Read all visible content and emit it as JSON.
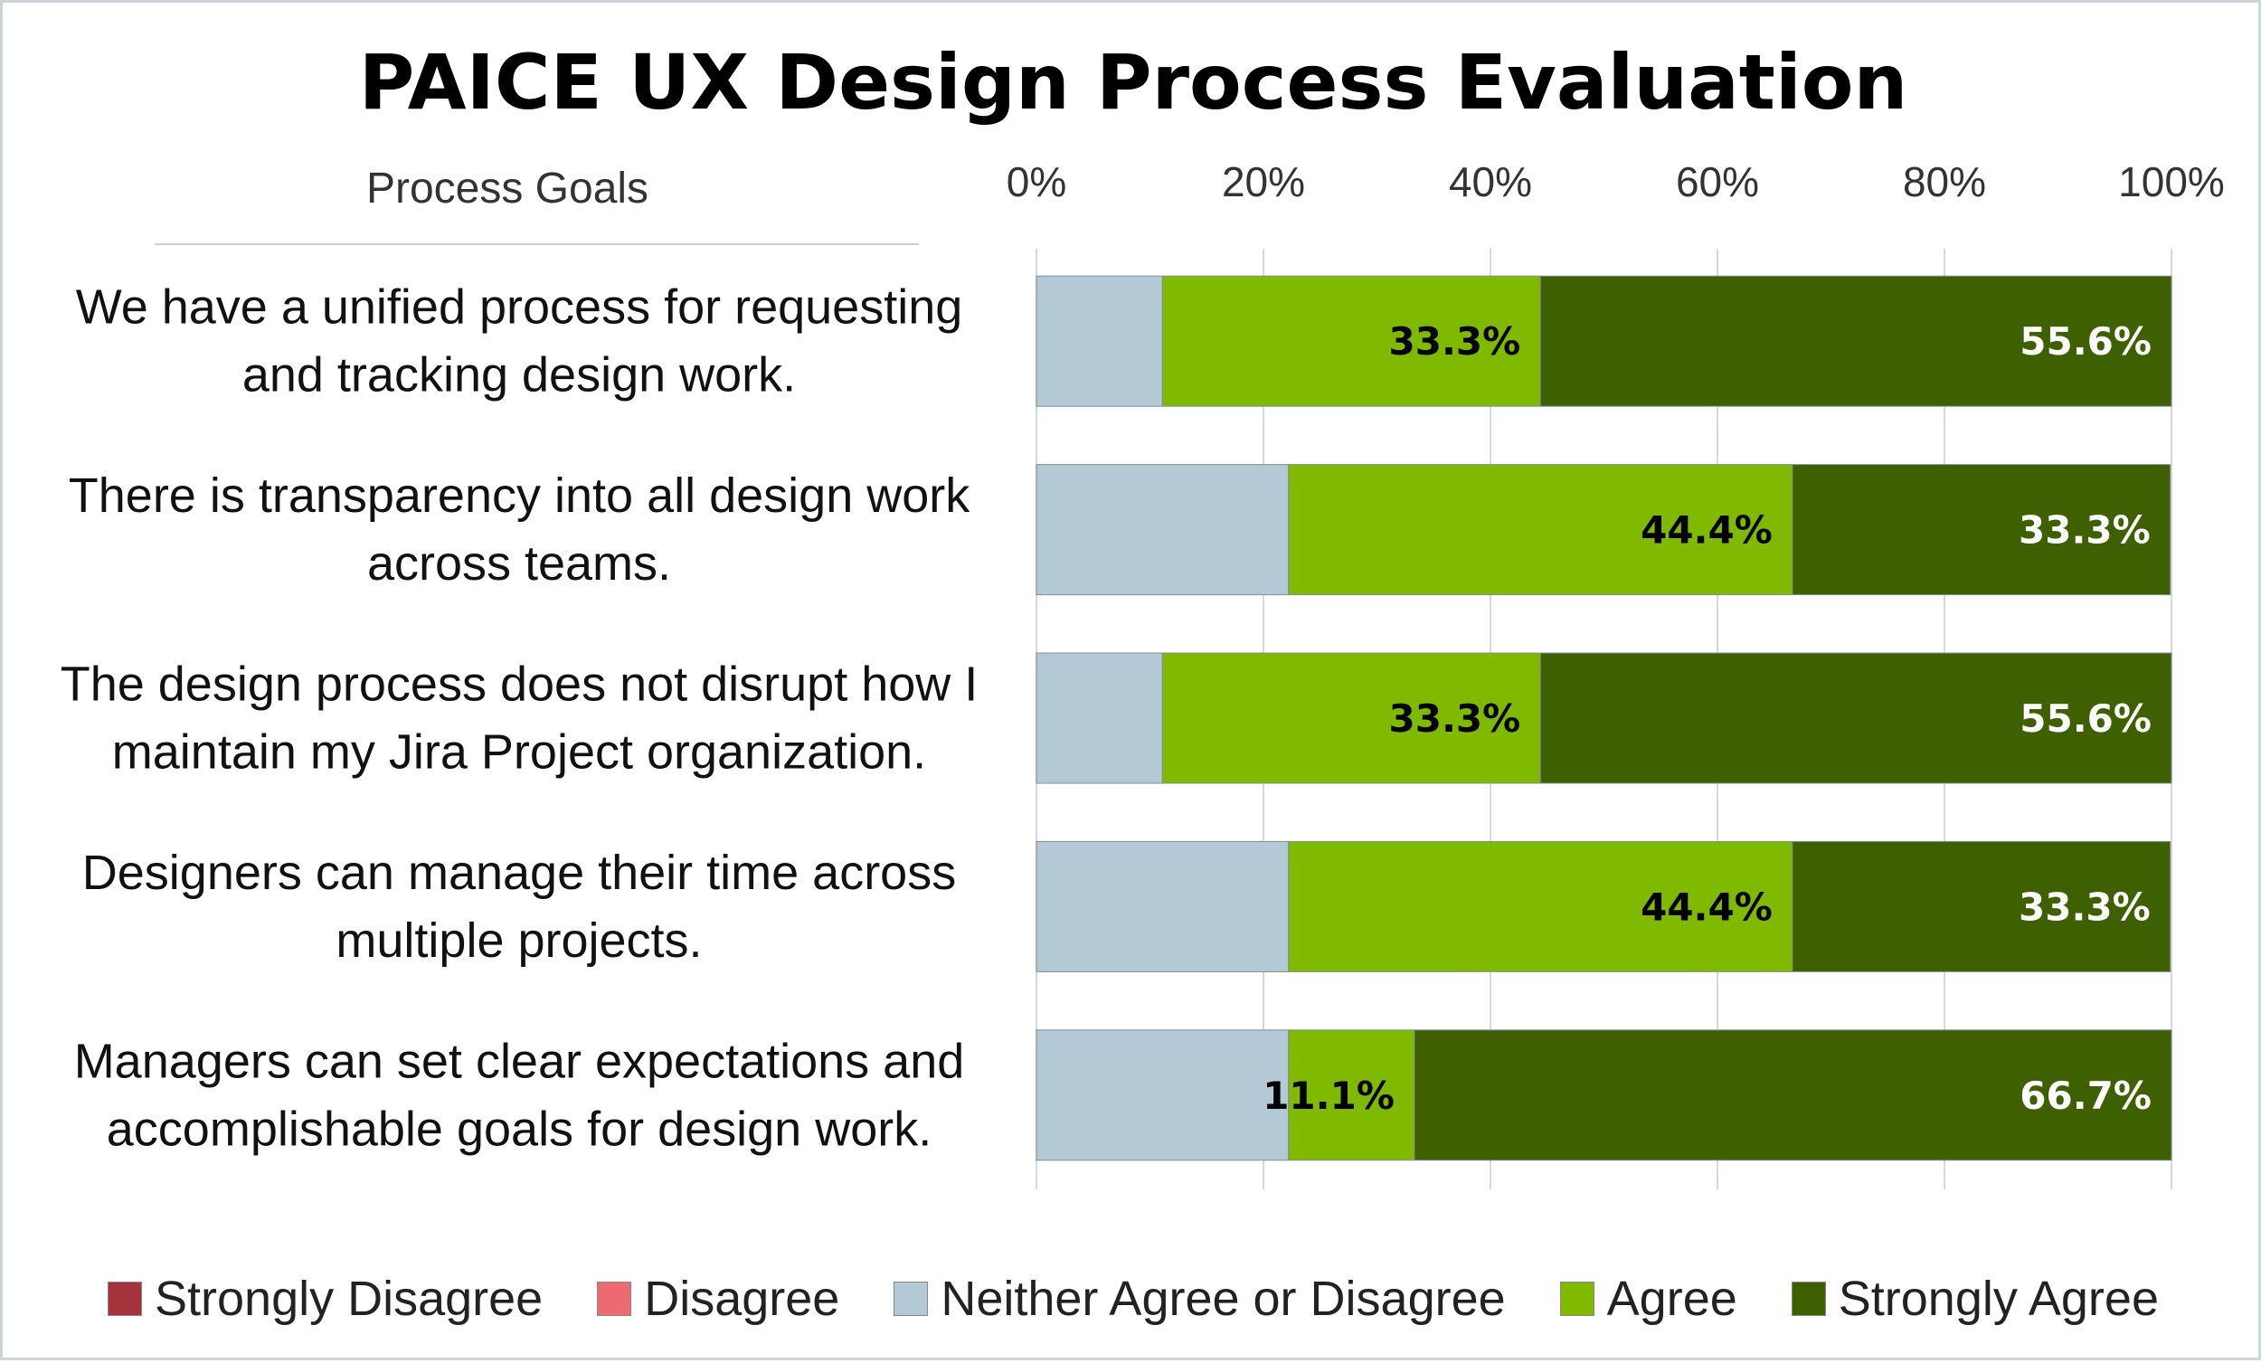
{
  "chart_data": {
    "type": "bar",
    "orientation": "horizontal",
    "stacked": true,
    "percent_stacked": true,
    "title": "PAICE UX Design Process Evaluation",
    "category_axis_label": "Process Goals",
    "x_ticks": [
      "0%",
      "20%",
      "40%",
      "60%",
      "80%",
      "100%"
    ],
    "xlim": [
      0,
      100
    ],
    "grid": true,
    "legend_position": "bottom",
    "categories": [
      [
        "We have a unified process for requesting",
        "and tracking design work."
      ],
      [
        "There is transparency into all design work",
        "across teams."
      ],
      [
        "The design process does not disrupt how I",
        "maintain my Jira Project organization."
      ],
      [
        "Designers can manage their time across",
        "multiple projects."
      ],
      [
        "Managers can set clear expectations and",
        "accomplishable goals for design work."
      ]
    ],
    "series": [
      {
        "name": "Strongly Disagree",
        "color": "#a4333b",
        "values": [
          0,
          0,
          0,
          0,
          0
        ],
        "labels": [
          "",
          "",
          "",
          "",
          ""
        ],
        "label_color": "#000000"
      },
      {
        "name": "Disagree",
        "color": "#ec6a70",
        "values": [
          0,
          0,
          0,
          0,
          0
        ],
        "labels": [
          "",
          "",
          "",
          "",
          ""
        ],
        "label_color": "#000000"
      },
      {
        "name": "Neither Agree or Disagree",
        "color": "#b3c9d6",
        "values": [
          11.1,
          22.2,
          11.1,
          22.2,
          22.2
        ],
        "labels": [
          "",
          "",
          "",
          "",
          ""
        ],
        "label_color": "#000000"
      },
      {
        "name": "Agree",
        "color": "#7fba00",
        "values": [
          33.3,
          44.4,
          33.3,
          44.4,
          11.1
        ],
        "labels": [
          "33.3%",
          "44.4%",
          "33.3%",
          "44.4%",
          "11.1%"
        ],
        "label_color": "#000000"
      },
      {
        "name": "Strongly Agree",
        "color": "#3e6001",
        "values": [
          55.6,
          33.3,
          55.6,
          33.3,
          66.7
        ],
        "labels": [
          "55.6%",
          "33.3%",
          "55.6%",
          "33.3%",
          "66.7%"
        ],
        "label_color": "#ffffff"
      }
    ]
  }
}
